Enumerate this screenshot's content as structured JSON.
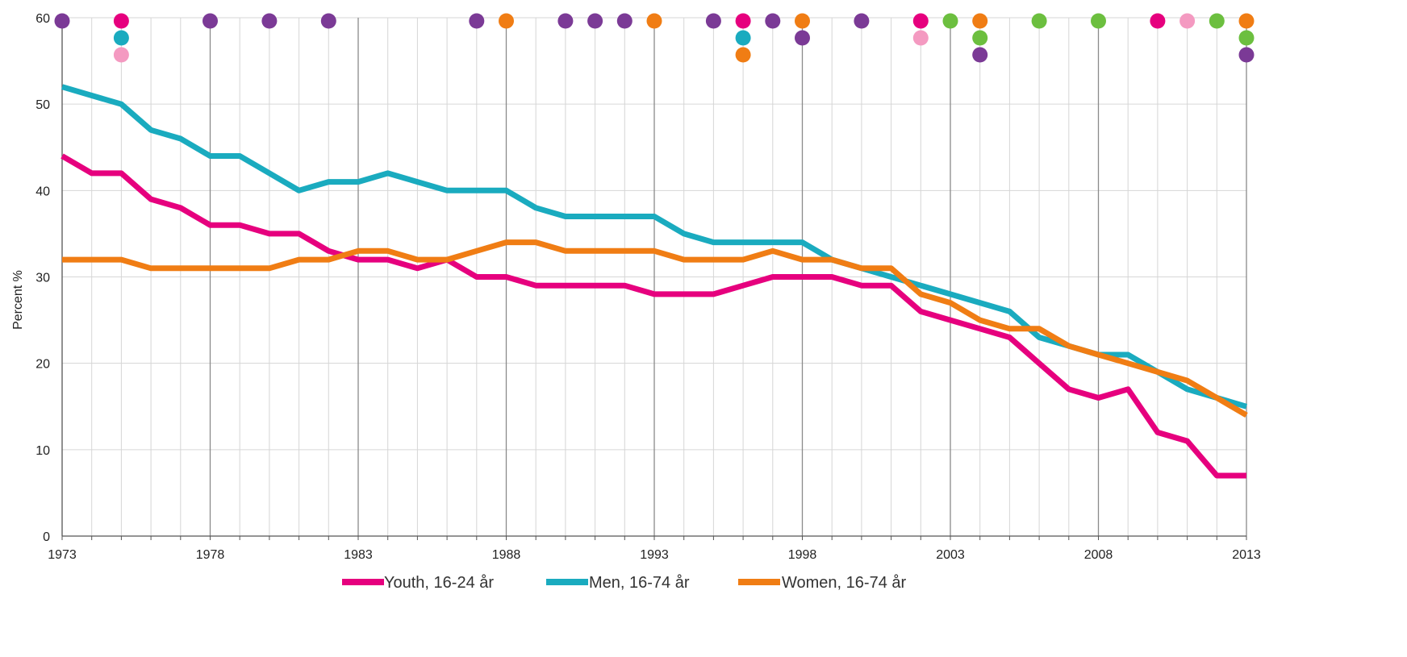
{
  "chart_data": {
    "type": "line",
    "title": "",
    "xlabel": "",
    "ylabel": "Percent %",
    "xlim": [
      1973,
      2013
    ],
    "ylim": [
      0,
      60
    ],
    "grid": true,
    "legend_position": "bottom",
    "x_ticks": [
      "1973",
      "1978",
      "1983",
      "1988",
      "1993",
      "1998",
      "2003",
      "2008",
      "2013"
    ],
    "y_ticks": [
      "0",
      "10",
      "20",
      "30",
      "40",
      "50",
      "60"
    ],
    "x": [
      1973,
      1974,
      1975,
      1976,
      1977,
      1978,
      1979,
      1980,
      1981,
      1982,
      1983,
      1984,
      1985,
      1986,
      1987,
      1988,
      1989,
      1990,
      1991,
      1992,
      1993,
      1994,
      1995,
      1996,
      1997,
      1998,
      1999,
      2000,
      2001,
      2002,
      2003,
      2004,
      2005,
      2006,
      2007,
      2008,
      2009,
      2010,
      2011,
      2012,
      2013
    ],
    "series": [
      {
        "name": "Youth, 16-24 år",
        "color": "#e6007e",
        "values": [
          44,
          42,
          42,
          39,
          38,
          36,
          36,
          35,
          35,
          33,
          32,
          32,
          31,
          32,
          30,
          30,
          29,
          29,
          29,
          29,
          28,
          28,
          28,
          29,
          30,
          30,
          30,
          29,
          29,
          26,
          25,
          24,
          23,
          20,
          17,
          16,
          17,
          12,
          11,
          7,
          7
        ]
      },
      {
        "name": "Men, 16-74 år",
        "color": "#1aabbf",
        "values": [
          52,
          51,
          50,
          47,
          46,
          44,
          44,
          42,
          40,
          41,
          41,
          42,
          41,
          40,
          40,
          40,
          38,
          37,
          37,
          37,
          37,
          35,
          34,
          34,
          34,
          34,
          32,
          31,
          30,
          29,
          28,
          27,
          26,
          23,
          22,
          21,
          21,
          19,
          17,
          16,
          15
        ]
      },
      {
        "name": "Women, 16-74 år",
        "color": "#f07d14",
        "values": [
          32,
          32,
          32,
          31,
          31,
          31,
          31,
          31,
          32,
          32,
          33,
          33,
          32,
          32,
          33,
          34,
          34,
          33,
          33,
          33,
          33,
          32,
          32,
          32,
          33,
          32,
          32,
          31,
          31,
          28,
          27,
          25,
          24,
          24,
          22,
          21,
          20,
          19,
          18,
          16,
          14
        ]
      }
    ],
    "event_markers": [
      {
        "year": 1973,
        "row": 0,
        "color": "#7b3a96"
      },
      {
        "year": 1975,
        "row": 0,
        "color": "#e6007e"
      },
      {
        "year": 1975,
        "row": 1,
        "color": "#1aabbf"
      },
      {
        "year": 1975,
        "row": 2,
        "color": "#f49ac1"
      },
      {
        "year": 1978,
        "row": 0,
        "color": "#7b3a96"
      },
      {
        "year": 1980,
        "row": 0,
        "color": "#7b3a96"
      },
      {
        "year": 1982,
        "row": 0,
        "color": "#7b3a96"
      },
      {
        "year": 1987,
        "row": 0,
        "color": "#7b3a96"
      },
      {
        "year": 1988,
        "row": 0,
        "color": "#f07d14"
      },
      {
        "year": 1990,
        "row": 0,
        "color": "#7b3a96"
      },
      {
        "year": 1991,
        "row": 0,
        "color": "#7b3a96"
      },
      {
        "year": 1992,
        "row": 0,
        "color": "#7b3a96"
      },
      {
        "year": 1993,
        "row": 0,
        "color": "#f07d14"
      },
      {
        "year": 1995,
        "row": 0,
        "color": "#7b3a96"
      },
      {
        "year": 1996,
        "row": 0,
        "color": "#e6007e"
      },
      {
        "year": 1996,
        "row": 1,
        "color": "#1aabbf"
      },
      {
        "year": 1996,
        "row": 2,
        "color": "#f07d14"
      },
      {
        "year": 1997,
        "row": 0,
        "color": "#7b3a96"
      },
      {
        "year": 1998,
        "row": 0,
        "color": "#f07d14"
      },
      {
        "year": 1998,
        "row": 1,
        "color": "#7b3a96"
      },
      {
        "year": 2000,
        "row": 0,
        "color": "#7b3a96"
      },
      {
        "year": 2002,
        "row": 0,
        "color": "#e6007e"
      },
      {
        "year": 2002,
        "row": 1,
        "color": "#f49ac1"
      },
      {
        "year": 2003,
        "row": 0,
        "color": "#6cbf3f"
      },
      {
        "year": 2004,
        "row": 0,
        "color": "#f07d14"
      },
      {
        "year": 2004,
        "row": 1,
        "color": "#6cbf3f"
      },
      {
        "year": 2004,
        "row": 2,
        "color": "#7b3a96"
      },
      {
        "year": 2006,
        "row": 0,
        "color": "#6cbf3f"
      },
      {
        "year": 2008,
        "row": 0,
        "color": "#6cbf3f"
      },
      {
        "year": 2010,
        "row": 0,
        "color": "#e6007e"
      },
      {
        "year": 2011,
        "row": 0,
        "color": "#f49ac1"
      },
      {
        "year": 2012,
        "row": 0,
        "color": "#6cbf3f"
      },
      {
        "year": 2013,
        "row": 0,
        "color": "#f07d14"
      },
      {
        "year": 2013,
        "row": 1,
        "color": "#6cbf3f"
      },
      {
        "year": 2013,
        "row": 2,
        "color": "#7b3a96"
      }
    ]
  }
}
